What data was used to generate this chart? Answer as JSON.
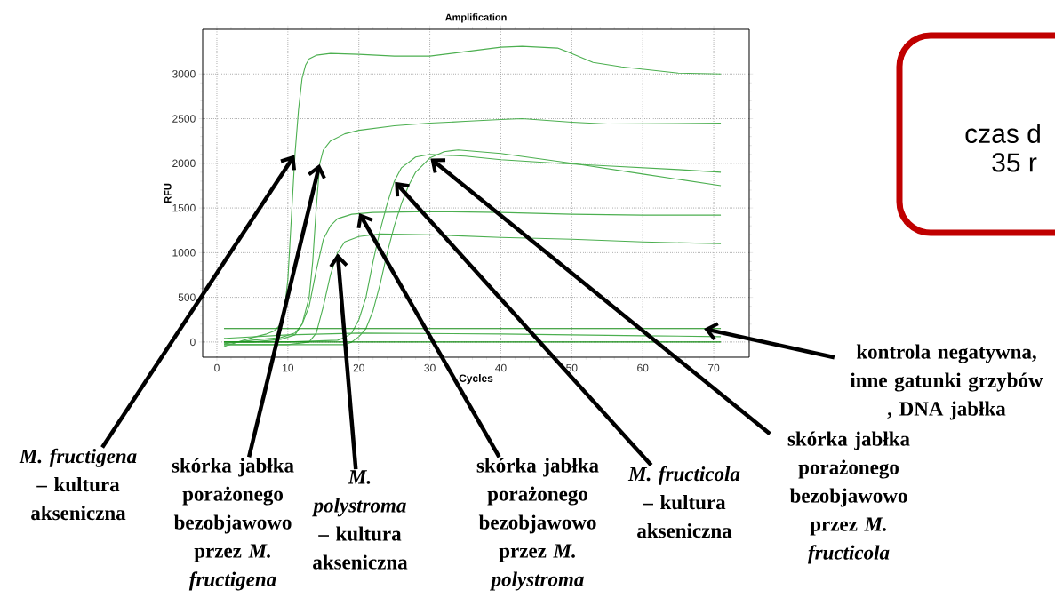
{
  "chart_data": {
    "type": "line",
    "title": "Amplification",
    "xlabel": "Cycles",
    "ylabel": "RFU",
    "xlim": [
      -2,
      75
    ],
    "ylim": [
      -170,
      3500
    ],
    "xticks": [
      0,
      10,
      20,
      30,
      40,
      50,
      60,
      70
    ],
    "yticks": [
      0,
      500,
      1000,
      1500,
      2000,
      2500,
      3000
    ],
    "grid": true,
    "series": [
      {
        "color": "#4caf50",
        "x": [
          1,
          3,
          5,
          7,
          8,
          9,
          9.5,
          10,
          10.5,
          11,
          11.5,
          12,
          12.5,
          13,
          14,
          16,
          20,
          25,
          30,
          35,
          40,
          43,
          48,
          50,
          53,
          57,
          65,
          71
        ],
        "values": [
          -50,
          0,
          50,
          90,
          120,
          200,
          350,
          700,
          1400,
          2100,
          2600,
          2950,
          3100,
          3170,
          3210,
          3230,
          3220,
          3200,
          3200,
          3250,
          3300,
          3310,
          3290,
          3230,
          3130,
          3080,
          3010,
          3000
        ]
      },
      {
        "color": "#4caf50",
        "x": [
          1,
          5,
          9,
          11,
          12,
          13,
          13.5,
          14,
          14.5,
          15,
          16,
          18,
          20,
          25,
          30,
          35,
          40,
          43,
          50,
          55,
          71
        ],
        "values": [
          -20,
          20,
          50,
          100,
          200,
          500,
          900,
          1500,
          2000,
          2150,
          2250,
          2330,
          2370,
          2420,
          2450,
          2470,
          2490,
          2500,
          2460,
          2440,
          2450
        ]
      },
      {
        "color": "#4caf50",
        "x": [
          1,
          5,
          9,
          11,
          12,
          13,
          14,
          15,
          16,
          17,
          19,
          22,
          30,
          40,
          50,
          60,
          71
        ],
        "values": [
          0,
          0,
          30,
          80,
          200,
          400,
          800,
          1150,
          1300,
          1380,
          1430,
          1450,
          1460,
          1450,
          1430,
          1420,
          1420
        ]
      },
      {
        "color": "#4caf50",
        "x": [
          1,
          5,
          10,
          13,
          14,
          15,
          16,
          17,
          18,
          20,
          23,
          30,
          40,
          50,
          60,
          71
        ],
        "values": [
          -30,
          -30,
          -30,
          0,
          100,
          400,
          750,
          1000,
          1120,
          1180,
          1210,
          1200,
          1170,
          1150,
          1120,
          1100
        ]
      },
      {
        "color": "#4caf50",
        "x": [
          1,
          10,
          17,
          18,
          19,
          20,
          21,
          22,
          23,
          24,
          25,
          26,
          28,
          30,
          35,
          40,
          48,
          55,
          65,
          71
        ],
        "values": [
          0,
          0,
          20,
          50,
          100,
          250,
          500,
          900,
          1250,
          1550,
          1800,
          1950,
          2070,
          2100,
          2080,
          2040,
          2000,
          1970,
          1930,
          1900
        ]
      },
      {
        "color": "#4caf50",
        "x": [
          1,
          10,
          18,
          19,
          20,
          21,
          22,
          23,
          24,
          25,
          26,
          27,
          28,
          30,
          32,
          34,
          40,
          50,
          60,
          71
        ],
        "values": [
          -30,
          -30,
          -30,
          0,
          60,
          150,
          350,
          650,
          1000,
          1300,
          1550,
          1750,
          1900,
          2060,
          2130,
          2150,
          2110,
          2000,
          1880,
          1750
        ]
      },
      {
        "color": "#4caf50",
        "x": [
          1,
          10,
          20,
          40,
          60,
          71
        ],
        "values": [
          40,
          80,
          100,
          90,
          70,
          60
        ]
      },
      {
        "color": "#108a10",
        "x": [
          1,
          71
        ],
        "values": [
          150,
          150
        ]
      },
      {
        "color": "#108a10",
        "x": [
          1,
          71
        ],
        "values": [
          0,
          0
        ]
      }
    ],
    "annotations": [
      {
        "text": "*M. fructigena* – kultura akseniczna",
        "x": 11,
        "y": 2100
      },
      {
        "text": "skórka jabłka porażonego bezobjawowo przez *M. fructigena*",
        "x": 14.5,
        "y": 2000
      },
      {
        "text": "*M. polystroma* – kultura akseniczna",
        "x": 17,
        "y": 1000
      },
      {
        "text": "skórka jabłka porażonego bezobjawowo przez *M. polystroma*",
        "x": 20,
        "y": 1450
      },
      {
        "text": "*M. fructicola* – kultura akseniczna",
        "x": 25,
        "y": 1800
      },
      {
        "text": "skórka jabłka porażonego bezobjawowo przez *M. fructicola*",
        "x": 30,
        "y": 2060
      },
      {
        "text": "kontrola negatywna, inne gatunki grzybów , DNA jabłka",
        "x": 68.5,
        "y": 150
      },
      "czas d",
      "35 r"
    ]
  }
}
